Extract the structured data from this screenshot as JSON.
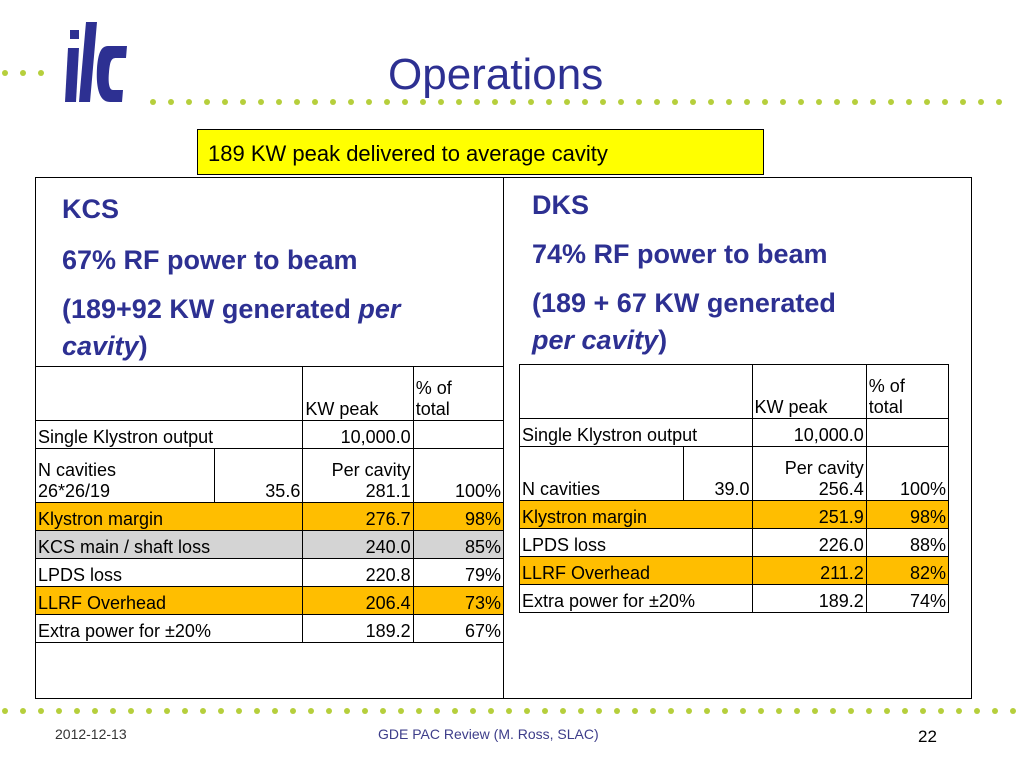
{
  "slide": {
    "title": "Operations",
    "callout": "189 KW peak delivered to average cavity"
  },
  "logo": {
    "text": "ilc",
    "color": "#2d3092"
  },
  "kcs": {
    "heading": "KCS",
    "line2": "67% RF power to beam",
    "line3_pre": "(189+92 KW generated ",
    "line3_italic": "per",
    "line4_italic": "cavity",
    "line4_post": ")",
    "table": {
      "header": [
        "",
        "KW peak",
        "% of total"
      ],
      "rows": [
        {
          "label": "Single Klystron output",
          "extra": "",
          "kw": "10,000.0",
          "pct": "",
          "style": ""
        },
        {
          "label": "N cavities 26*26/19",
          "extra": "35.6",
          "kw": "Per cavity 281.1",
          "pct": "100%",
          "style": ""
        },
        {
          "label": "Klystron margin",
          "extra": "",
          "kw": "276.7",
          "pct": "98%",
          "style": "orange"
        },
        {
          "label": "KCS main / shaft loss",
          "extra": "",
          "kw": "240.0",
          "pct": "85%",
          "style": "gray"
        },
        {
          "label": "LPDS loss",
          "extra": "",
          "kw": "220.8",
          "pct": "79%",
          "style": ""
        },
        {
          "label": "LLRF Overhead",
          "extra": "",
          "kw": "206.4",
          "pct": "73%",
          "style": "orange"
        },
        {
          "label": "Extra power for ±20%",
          "extra": "",
          "kw": "189.2",
          "pct": "67%",
          "style": ""
        }
      ],
      "header_kw": "KW peak",
      "header_pct1": "% of",
      "header_pct2": "total",
      "ncav_label1": "N cavities",
      "ncav_label2": "26*26/19",
      "ncav_extra": "35.6",
      "ncav_kw1": "Per cavity",
      "ncav_kw2": "281.1",
      "ncav_pct": "100%"
    }
  },
  "dks": {
    "heading": "DKS",
    "line2": "74% RF power to beam",
    "line3": "(189 + 67 KW generated",
    "line4_italic": "per cavity",
    "line4_post": ")",
    "table": {
      "header_kw": "KW peak",
      "header_pct1": "% of",
      "header_pct2": "total",
      "r1_label": "Single Klystron output",
      "r1_kw": "10,000.0",
      "ncav_label": "N cavities",
      "ncav_extra": "39.0",
      "ncav_kw1": "Per cavity",
      "ncav_kw2": "256.4",
      "ncav_pct": "100%",
      "r3_label": "Klystron margin",
      "r3_kw": "251.9",
      "r3_pct": "98%",
      "r4_label": "LPDS loss",
      "r4_kw": "226.0",
      "r4_pct": "88%",
      "r5_label": "LLRF Overhead",
      "r5_kw": "211.2",
      "r5_pct": "82%",
      "r6_label": "Extra power for ±20%",
      "r6_kw": "189.2",
      "r6_pct": "74%"
    }
  },
  "footer": {
    "date": "2012-12-13",
    "center": "GDE PAC Review (M. Ross, SLAC)",
    "page": "22"
  },
  "colors": {
    "title": "#2d3092",
    "dots": "#b6cf3c",
    "callout": "#ffff00",
    "highlight": "#ffbe00",
    "gray_row": "#d4d4d4"
  }
}
